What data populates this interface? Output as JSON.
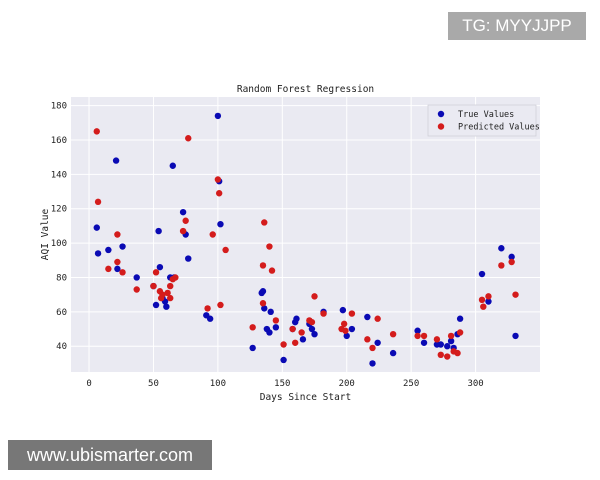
{
  "overlay": {
    "tg_label": "TG: MYYJJPP",
    "site_label": "www.ubismarter.com"
  },
  "chart_data": {
    "type": "scatter",
    "title": "Random Forest Regression",
    "xlabel": "Days Since Start",
    "ylabel": "AQI Value",
    "xlim": [
      -14,
      350
    ],
    "ylim": [
      25,
      185
    ],
    "xticks": [
      0,
      50,
      100,
      150,
      200,
      250,
      300
    ],
    "yticks": [
      40,
      60,
      80,
      100,
      120,
      140,
      160,
      180
    ],
    "grid": true,
    "legend_placement": "top-right",
    "background": "#eaeaf2",
    "series": [
      {
        "name": "True Values",
        "color": "#0a0ab4",
        "points": [
          [
            6,
            109
          ],
          [
            7,
            94
          ],
          [
            15,
            96
          ],
          [
            21,
            148
          ],
          [
            22,
            85
          ],
          [
            26,
            98
          ],
          [
            37,
            80
          ],
          [
            50,
            75
          ],
          [
            52,
            64
          ],
          [
            54,
            107
          ],
          [
            55,
            86
          ],
          [
            57,
            68
          ],
          [
            59,
            66
          ],
          [
            60,
            63
          ],
          [
            63,
            80
          ],
          [
            65,
            145
          ],
          [
            66,
            80
          ],
          [
            73,
            118
          ],
          [
            75,
            105
          ],
          [
            77,
            91
          ],
          [
            91,
            58
          ],
          [
            94,
            56
          ],
          [
            100,
            174
          ],
          [
            101,
            136
          ],
          [
            102,
            111
          ],
          [
            127,
            39
          ],
          [
            134,
            71
          ],
          [
            135,
            72
          ],
          [
            136,
            62
          ],
          [
            138,
            50
          ],
          [
            140,
            48
          ],
          [
            141,
            60
          ],
          [
            145,
            51
          ],
          [
            151,
            32
          ],
          [
            158,
            50
          ],
          [
            160,
            54
          ],
          [
            161,
            56
          ],
          [
            166,
            44
          ],
          [
            171,
            53
          ],
          [
            173,
            50
          ],
          [
            175,
            47
          ],
          [
            182,
            60
          ],
          [
            197,
            61
          ],
          [
            200,
            46
          ],
          [
            204,
            50
          ],
          [
            216,
            57
          ],
          [
            220,
            30
          ],
          [
            224,
            42
          ],
          [
            236,
            36
          ],
          [
            255,
            49
          ],
          [
            260,
            42
          ],
          [
            270,
            41
          ],
          [
            273,
            41
          ],
          [
            278,
            40
          ],
          [
            281,
            43
          ],
          [
            283,
            39
          ],
          [
            286,
            47
          ],
          [
            288,
            56
          ],
          [
            305,
            82
          ],
          [
            310,
            66
          ],
          [
            320,
            97
          ],
          [
            328,
            92
          ],
          [
            331,
            46
          ]
        ]
      },
      {
        "name": "Predicted Values",
        "color": "#d41c1c",
        "points": [
          [
            6,
            165
          ],
          [
            7,
            124
          ],
          [
            15,
            85
          ],
          [
            22,
            105
          ],
          [
            22,
            89
          ],
          [
            26,
            83
          ],
          [
            37,
            73
          ],
          [
            50,
            75
          ],
          [
            52,
            83
          ],
          [
            55,
            72
          ],
          [
            56,
            68
          ],
          [
            57,
            70
          ],
          [
            61,
            71
          ],
          [
            63,
            68
          ],
          [
            63,
            75
          ],
          [
            65,
            79
          ],
          [
            67,
            80
          ],
          [
            73,
            107
          ],
          [
            75,
            113
          ],
          [
            77,
            161
          ],
          [
            92,
            62
          ],
          [
            96,
            105
          ],
          [
            100,
            137
          ],
          [
            101,
            129
          ],
          [
            102,
            64
          ],
          [
            106,
            96
          ],
          [
            127,
            51
          ],
          [
            135,
            65
          ],
          [
            135,
            87
          ],
          [
            136,
            112
          ],
          [
            140,
            98
          ],
          [
            142,
            84
          ],
          [
            145,
            55
          ],
          [
            151,
            41
          ],
          [
            158,
            50
          ],
          [
            160,
            42
          ],
          [
            165,
            48
          ],
          [
            171,
            55
          ],
          [
            173,
            54
          ],
          [
            175,
            69
          ],
          [
            182,
            59
          ],
          [
            196,
            50
          ],
          [
            198,
            53
          ],
          [
            199,
            49
          ],
          [
            204,
            59
          ],
          [
            216,
            44
          ],
          [
            220,
            39
          ],
          [
            224,
            56
          ],
          [
            236,
            47
          ],
          [
            255,
            46
          ],
          [
            260,
            46
          ],
          [
            270,
            44
          ],
          [
            273,
            35
          ],
          [
            278,
            34
          ],
          [
            281,
            46
          ],
          [
            283,
            37
          ],
          [
            286,
            36
          ],
          [
            288,
            48
          ],
          [
            305,
            67
          ],
          [
            306,
            63
          ],
          [
            310,
            69
          ],
          [
            320,
            87
          ],
          [
            328,
            89
          ],
          [
            331,
            70
          ]
        ]
      }
    ]
  }
}
